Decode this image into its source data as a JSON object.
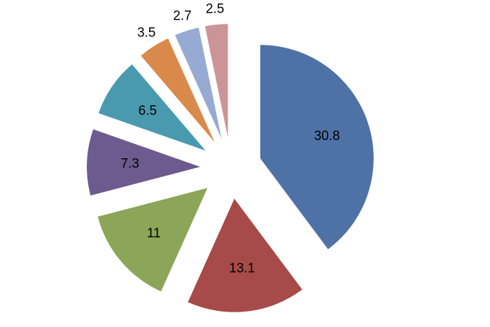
{
  "chart_data": {
    "type": "pie",
    "exploded": true,
    "labels": [
      "30.8",
      "13.1",
      "11",
      "7.3",
      "6.5",
      "3.5",
      "2.7",
      "2.5"
    ],
    "values": [
      30.8,
      13.1,
      11,
      7.3,
      6.5,
      3.5,
      2.7,
      2.5
    ],
    "colors": [
      "#4f72a6",
      "#a64b49",
      "#8ba658",
      "#6d5a8e",
      "#4a9aaf",
      "#d9894a",
      "#97aad3",
      "#cc9496"
    ],
    "legend": "none"
  }
}
